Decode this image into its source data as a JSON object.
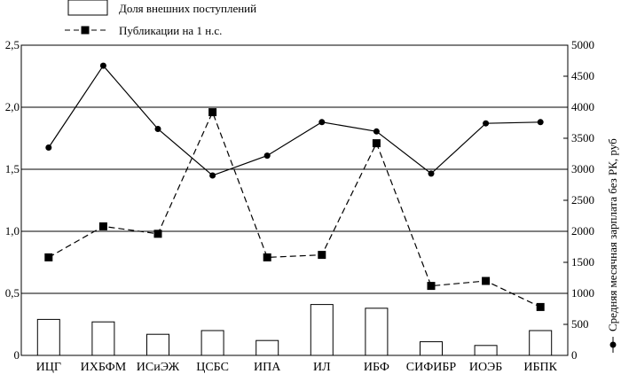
{
  "chart_data": {
    "type": "bar",
    "categories": [
      "ИЦГ",
      "ИХБФМ",
      "ИСиЭЖ",
      "ЦСБС",
      "ИПА",
      "ИЛ",
      "ИБФ",
      "СИФИБР",
      "ИОЭБ",
      "ИБПК"
    ],
    "left_axis": {
      "ylim": [
        0,
        2.5
      ],
      "ticks": [
        "0",
        "0,5",
        "1,0",
        "1,5",
        "2,0",
        "2,5"
      ],
      "tick_values": [
        0,
        0.5,
        1.0,
        1.5,
        2.0,
        2.5
      ]
    },
    "right_axis": {
      "label": "Средняя месячная зарплата без РК, руб",
      "ylim": [
        0,
        5000
      ],
      "ticks": [
        "0",
        "500",
        "1000",
        "1500",
        "2000",
        "2500",
        "3000",
        "3500",
        "4000",
        "4500",
        "5000"
      ],
      "tick_values": [
        0,
        500,
        1000,
        1500,
        2000,
        2500,
        3000,
        3500,
        4000,
        4500,
        5000
      ]
    },
    "series": [
      {
        "name": "Доля внешних поступлений",
        "kind": "bar",
        "axis": "left",
        "values": [
          0.29,
          0.27,
          0.17,
          0.2,
          0.12,
          0.41,
          0.38,
          0.11,
          0.08,
          0.2
        ]
      },
      {
        "name": "Публикации на 1 н.с.",
        "kind": "dashed-line-square-markers",
        "axis": "left",
        "values": [
          0.79,
          1.04,
          0.98,
          1.96,
          0.79,
          0.81,
          1.71,
          0.56,
          0.6,
          0.39
        ]
      },
      {
        "name": "Средняя месячная зарплата без РК, руб",
        "kind": "solid-line-circle-markers",
        "axis": "right",
        "values": [
          3350,
          4670,
          3650,
          2900,
          3220,
          3760,
          3610,
          2930,
          3740,
          3760
        ]
      }
    ],
    "legend": {
      "placement": "top",
      "entries": [
        "Доля внешних поступлений",
        "Публикации на 1 н.с."
      ]
    },
    "grid": "horizontal",
    "colors": {
      "line": "#000000",
      "bar_fill": "#ffffff",
      "background": "#ffffff"
    }
  }
}
